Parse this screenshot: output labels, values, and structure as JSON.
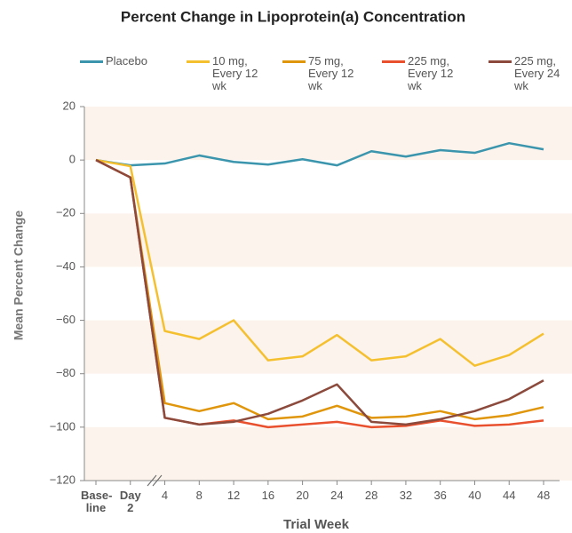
{
  "chart_data": {
    "type": "line",
    "title": "Percent Change in Lipoprotein(a) Concentration",
    "x_label": "Trial Week",
    "y_label": "Mean Percent Change",
    "categories": [
      "Base-line",
      "Day 2",
      "4",
      "8",
      "12",
      "16",
      "20",
      "24",
      "28",
      "32",
      "36",
      "40",
      "44",
      "48"
    ],
    "ylim": [
      -120,
      20
    ],
    "yticks": [
      {
        "value": -120,
        "label": "−120"
      },
      {
        "value": -100,
        "label": "−100"
      },
      {
        "value": -80,
        "label": "−80"
      },
      {
        "value": -60,
        "label": "−60"
      },
      {
        "value": -40,
        "label": "−40"
      },
      {
        "value": -20,
        "label": "−20"
      },
      0,
      20
    ],
    "bands": true,
    "series": [
      {
        "name": "Placebo",
        "color": "#3a95ad",
        "values": [
          0,
          -2,
          -1.3,
          1.7,
          -0.7,
          -1.7,
          0.3,
          -2,
          3.3,
          1.3,
          3.7,
          2.7,
          6.3,
          4
        ]
      },
      {
        "name": "10 mg, Every 12 wk",
        "color": "#f5c030",
        "values": [
          0,
          -2.3,
          -64,
          -67,
          -60,
          -75,
          -73.5,
          -65.5,
          -75,
          -73.5,
          -67,
          -77,
          -73,
          -65
        ]
      },
      {
        "name": "75 mg, Every 12 wk",
        "color": "#e0960c",
        "values": [
          0,
          -6.5,
          -91,
          -94,
          -91,
          -97,
          -96,
          -92,
          -96.5,
          -96,
          -94,
          -97,
          -95.5,
          -92.5
        ]
      },
      {
        "name": "225 mg, Every 12 wk",
        "color": "#e8502e",
        "values": [
          0,
          -6.5,
          -96.5,
          -99,
          -97.5,
          -100,
          -99,
          -98,
          -100,
          -99.5,
          -97.5,
          -99.5,
          -99,
          -97.5
        ]
      },
      {
        "name": "225 mg, Every 24 wk",
        "color": "#8b4a3c",
        "values": [
          0,
          -6.5,
          -96.5,
          -99,
          -98,
          -95,
          -90,
          -84,
          -98,
          -99,
          -97,
          -94,
          -89.5,
          -82.5
        ]
      }
    ]
  }
}
